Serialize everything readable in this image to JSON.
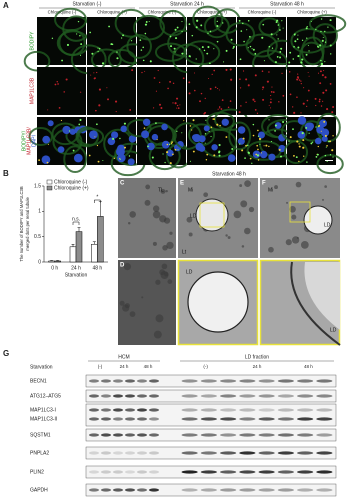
{
  "panel_a": {
    "label": "A",
    "groups": [
      "Starvation (-)",
      "Starvation 24 h",
      "Starvation 48 h"
    ],
    "treatments": [
      "Chloroquine (-)",
      "Chloroquine (+)"
    ],
    "rows": [
      "BODIPY",
      "MAP1LC3B"
    ],
    "merged_label": [
      "BODIPY/",
      "MAP1LC3B/",
      "DAPI"
    ]
  },
  "panel_b": {
    "label": "B",
    "type": "bar",
    "ylabel": [
      "The number of BODIPY and MAP1LC3B",
      "merged dots per renal tubule"
    ],
    "xlabel": "Starvation",
    "categories": [
      "0 h",
      "24 h",
      "48 h"
    ],
    "series": [
      {
        "name": "Chloroquine (-)",
        "color": "#ffffff",
        "values": [
          0.02,
          0.3,
          0.35
        ],
        "errors": [
          0.01,
          0.05,
          0.05
        ]
      },
      {
        "name": "Chloroquine (+)",
        "color": "#8c8c8c",
        "values": [
          0.02,
          0.6,
          0.9
        ],
        "errors": [
          0.01,
          0.08,
          0.3
        ]
      }
    ],
    "ylim": [
      0,
      1.5
    ],
    "yticks": [
      0,
      0.5,
      1,
      1.5
    ],
    "annotations": [
      "n.s.",
      "*"
    ]
  },
  "panel_cf": {
    "title": "Starvation 48 h",
    "letters": [
      "C",
      "D",
      "E",
      "F"
    ],
    "markers": [
      "TL",
      "LD",
      "Mi",
      "Lt"
    ]
  },
  "panel_g": {
    "label": "G",
    "fractions": [
      "HCM",
      "LD fraction"
    ],
    "row_title": "Starvation",
    "lanes": [
      "(-)",
      "24 h",
      "48 h"
    ],
    "proteins": [
      "BECN1",
      "ATG12–ATG5",
      "MAP1LC3-I",
      "MAP1LC3-II",
      "SQSTM1",
      "PNPLA2",
      "PLIN2",
      "GAPDH"
    ]
  }
}
